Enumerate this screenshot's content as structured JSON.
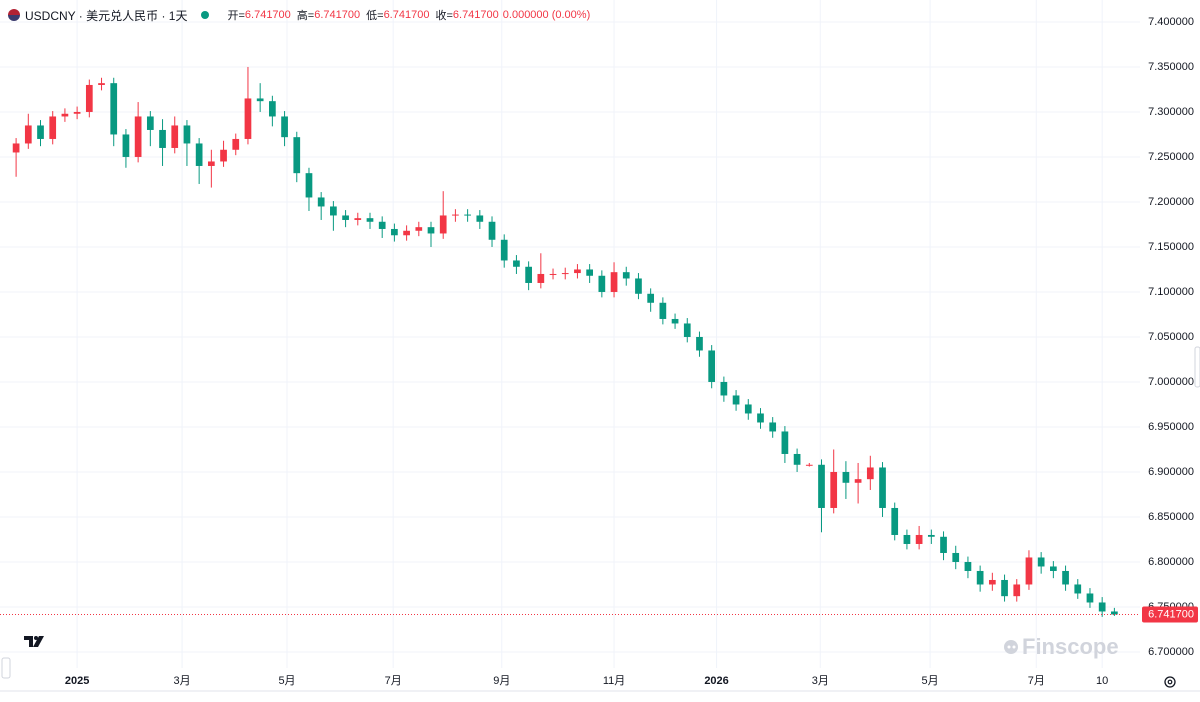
{
  "header": {
    "symbol": "USDCNY · 美元兑人民币 · 1天",
    "open_label": "开=",
    "open": "6.741700",
    "high_label": "高=",
    "high": "6.741700",
    "low_label": "低=",
    "low": "6.741700",
    "close_label": "收=",
    "close": "6.741700",
    "change": "0.000000 (0.00%)"
  },
  "watermark": "Finscope",
  "chart_data": {
    "type": "candlestick",
    "up_color": "#f23645",
    "down_color": "#089981",
    "grid": true,
    "x": [
      0.5,
      1.5,
      2.5,
      3.5,
      4.5,
      5.5,
      6.5,
      7.5,
      8.5,
      9.5,
      10.5,
      11.5,
      12.5,
      13.5,
      14.5,
      15.5,
      16.5,
      17.5,
      18.5,
      19.5,
      20.5,
      21.5,
      22.5,
      23.5,
      24.5,
      25.5,
      26.5,
      27.5,
      28.5,
      29.5,
      30.5,
      31.5,
      32.5,
      33.5,
      34.5,
      35.5,
      36.5,
      37.5,
      38.5,
      39.5,
      40.5,
      41.5,
      42.5,
      43.5,
      44.5,
      45.5,
      46.5,
      47.5,
      48.5,
      49.5,
      50.5,
      51.5,
      52.5,
      53.5,
      54.5,
      55.5,
      56.5,
      57.5,
      58.5,
      59.5,
      60.5,
      61.5,
      62.5,
      63.5,
      64.5,
      65.5,
      66.5,
      67.5,
      68.5,
      69.5,
      70.5,
      71.5,
      72.5,
      73.5,
      74.5,
      75.5,
      76.5,
      77.5,
      78.5,
      79.5,
      80.5,
      81.5,
      82.5,
      83.5,
      84.5,
      85.5,
      86.5,
      87.5,
      88.5,
      89.5,
      90.5
    ],
    "open": [
      7.255,
      7.265,
      7.285,
      7.27,
      7.295,
      7.298,
      7.3,
      7.33,
      7.332,
      7.275,
      7.25,
      7.295,
      7.28,
      7.26,
      7.285,
      7.265,
      7.24,
      7.245,
      7.258,
      7.27,
      7.315,
      7.312,
      7.295,
      7.272,
      7.232,
      7.205,
      7.195,
      7.185,
      7.18,
      7.182,
      7.178,
      7.17,
      7.163,
      7.168,
      7.172,
      7.165,
      7.185,
      7.186,
      7.185,
      7.178,
      7.158,
      7.135,
      7.128,
      7.11,
      7.12,
      7.12,
      7.121,
      7.125,
      7.118,
      7.1,
      7.122,
      7.115,
      7.098,
      7.088,
      7.07,
      7.065,
      7.05,
      7.035,
      7.0,
      6.985,
      6.975,
      6.965,
      6.955,
      6.945,
      6.92,
      6.908,
      6.908,
      6.86,
      6.9,
      6.888,
      6.892,
      6.905,
      6.86,
      6.83,
      6.82,
      6.83,
      6.828,
      6.81,
      6.8,
      6.79,
      6.775,
      6.78,
      6.762,
      6.775,
      6.805,
      6.795,
      6.79,
      6.775,
      6.765,
      6.755,
      6.745
    ],
    "high": [
      7.271,
      7.298,
      7.291,
      7.301,
      7.304,
      7.306,
      7.336,
      7.338,
      7.338,
      7.281,
      7.311,
      7.301,
      7.292,
      7.295,
      7.291,
      7.271,
      7.258,
      7.268,
      7.276,
      7.35,
      7.332,
      7.318,
      7.301,
      7.278,
      7.238,
      7.211,
      7.201,
      7.191,
      7.188,
      7.188,
      7.184,
      7.176,
      7.174,
      7.178,
      7.178,
      7.212,
      7.192,
      7.192,
      7.191,
      7.184,
      7.164,
      7.141,
      7.134,
      7.143,
      7.126,
      7.127,
      7.131,
      7.131,
      7.124,
      7.133,
      7.128,
      7.121,
      7.104,
      7.094,
      7.076,
      7.071,
      7.056,
      7.041,
      7.006,
      6.991,
      6.981,
      6.971,
      6.961,
      6.951,
      6.926,
      6.91,
      6.914,
      6.925,
      6.912,
      6.91,
      6.918,
      6.911,
      6.866,
      6.836,
      6.84,
      6.836,
      6.834,
      6.818,
      6.806,
      6.796,
      6.788,
      6.786,
      6.781,
      6.813,
      6.811,
      6.801,
      6.796,
      6.781,
      6.771,
      6.761,
      6.749
    ],
    "low": [
      7.228,
      7.259,
      7.262,
      7.264,
      7.289,
      7.292,
      7.294,
      7.324,
      7.262,
      7.238,
      7.244,
      7.262,
      7.24,
      7.254,
      7.24,
      7.22,
      7.216,
      7.239,
      7.252,
      7.264,
      7.3,
      7.284,
      7.262,
      7.222,
      7.19,
      7.18,
      7.168,
      7.172,
      7.174,
      7.17,
      7.16,
      7.156,
      7.157,
      7.162,
      7.15,
      7.159,
      7.178,
      7.178,
      7.17,
      7.15,
      7.127,
      7.12,
      7.102,
      7.104,
      7.114,
      7.114,
      7.115,
      7.11,
      7.094,
      7.094,
      7.107,
      7.092,
      7.078,
      7.064,
      7.059,
      7.044,
      7.028,
      6.993,
      6.978,
      6.968,
      6.958,
      6.948,
      6.938,
      6.91,
      6.9,
      6.906,
      6.833,
      6.854,
      6.87,
      6.865,
      6.88,
      6.85,
      6.824,
      6.814,
      6.814,
      6.82,
      6.802,
      6.792,
      6.782,
      6.767,
      6.768,
      6.756,
      6.756,
      6.769,
      6.787,
      6.782,
      6.768,
      6.759,
      6.749,
      6.739,
      6.74
    ],
    "close": [
      7.265,
      7.285,
      7.27,
      7.295,
      7.298,
      7.3,
      7.33,
      7.332,
      7.275,
      7.25,
      7.295,
      7.28,
      7.26,
      7.285,
      7.265,
      7.24,
      7.245,
      7.258,
      7.27,
      7.315,
      7.312,
      7.295,
      7.272,
      7.232,
      7.205,
      7.195,
      7.185,
      7.18,
      7.182,
      7.178,
      7.17,
      7.163,
      7.168,
      7.172,
      7.165,
      7.185,
      7.186,
      7.185,
      7.178,
      7.158,
      7.135,
      7.128,
      7.11,
      7.12,
      7.12,
      7.121,
      7.125,
      7.118,
      7.1,
      7.122,
      7.115,
      7.098,
      7.088,
      7.07,
      7.065,
      7.05,
      7.035,
      7.0,
      6.985,
      6.975,
      6.965,
      6.955,
      6.945,
      6.92,
      6.908,
      6.908,
      6.86,
      6.9,
      6.888,
      6.892,
      6.905,
      6.86,
      6.83,
      6.82,
      6.83,
      6.828,
      6.81,
      6.8,
      6.79,
      6.775,
      6.78,
      6.762,
      6.775,
      6.805,
      6.795,
      6.79,
      6.775,
      6.765,
      6.755,
      6.745,
      6.7417
    ],
    "last_price": {
      "value": 6.7417,
      "label": "6.741700"
    },
    "xlim": [
      0,
      92.6
    ],
    "xticks": [
      {
        "value": 5.5,
        "label": "2025"
      },
      {
        "value": 14.1,
        "label": "3月"
      },
      {
        "value": 22.7,
        "label": "5月"
      },
      {
        "value": 31.4,
        "label": "7月"
      },
      {
        "value": 40.3,
        "label": "9月"
      },
      {
        "value": 49.5,
        "label": "11月"
      },
      {
        "value": 57.9,
        "label": "2026"
      },
      {
        "value": 66.4,
        "label": "3月"
      },
      {
        "value": 75.4,
        "label": "5月"
      },
      {
        "value": 84.1,
        "label": "7月"
      },
      {
        "value": 89.5,
        "label": "10"
      }
    ],
    "ylim": [
      6.6822,
      7.4244
    ],
    "yticks": [
      {
        "value": 6.7,
        "label": "6.700000"
      },
      {
        "value": 6.75,
        "label": "6.750000"
      },
      {
        "value": 6.8,
        "label": "6.800000"
      },
      {
        "value": 6.85,
        "label": "6.850000"
      },
      {
        "value": 6.9,
        "label": "6.900000"
      },
      {
        "value": 6.95,
        "label": "6.950000"
      },
      {
        "value": 7.0,
        "label": "7.000000"
      },
      {
        "value": 7.05,
        "label": "7.050000"
      },
      {
        "value": 7.1,
        "label": "7.100000"
      },
      {
        "value": 7.15,
        "label": "7.150000"
      },
      {
        "value": 7.2,
        "label": "7.200000"
      },
      {
        "value": 7.25,
        "label": "7.250000"
      },
      {
        "value": 7.3,
        "label": "7.300000"
      },
      {
        "value": 7.35,
        "label": "7.350000"
      },
      {
        "value": 7.4,
        "label": "7.400000"
      }
    ]
  }
}
